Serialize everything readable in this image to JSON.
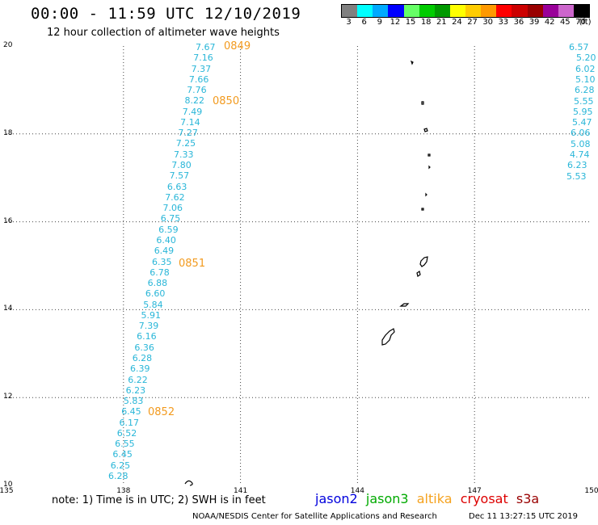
{
  "header": {
    "title": "00:00 - 11:59 UTC 12/10/2019",
    "subtitle": "12 hour collection of altimeter wave heights"
  },
  "legend": {
    "unit": "(ft)",
    "bins": [
      {
        "label": "3",
        "color": "#808080"
      },
      {
        "label": "6",
        "color": "#00ffff"
      },
      {
        "label": "9",
        "color": "#00aaff"
      },
      {
        "label": "12",
        "color": "#0000ff"
      },
      {
        "label": "15",
        "color": "#66ff66"
      },
      {
        "label": "18",
        "color": "#00cc00"
      },
      {
        "label": "21",
        "color": "#009900"
      },
      {
        "label": "24",
        "color": "#ffff00"
      },
      {
        "label": "27",
        "color": "#ffcc00"
      },
      {
        "label": "30",
        "color": "#ff9900"
      },
      {
        "label": "33",
        "color": "#ff0000"
      },
      {
        "label": "36",
        "color": "#cc0000"
      },
      {
        "label": "39",
        "color": "#990000"
      },
      {
        "label": "42",
        "color": "#990099"
      },
      {
        "label": "45",
        "color": "#cc66cc"
      },
      {
        "label": "70",
        "color": "#000000"
      }
    ]
  },
  "axes": {
    "lat_labels": [
      "20",
      "18",
      "16",
      "14",
      "12",
      "10"
    ],
    "lon_labels": [
      "135",
      "138",
      "141",
      "144",
      "147",
      "150"
    ]
  },
  "tracks": {
    "main_values": [
      "7.67",
      "7.16",
      "7.37",
      "7.66",
      "7.76",
      "8.22",
      "7.49",
      "7.14",
      "7.27",
      "7.25",
      "7.33",
      "7.80",
      "7.57",
      "6.63",
      "7.62",
      "7.06",
      "6.75",
      "6.59",
      "6.40",
      "6.49",
      "6.35",
      "6.78",
      "6.88",
      "6.60",
      "5.84",
      "5.91",
      "7.39",
      "6.16",
      "6.36",
      "6.28",
      "6.39",
      "6.22",
      "6.23",
      "5.83",
      "6.45",
      "6.17",
      "6.52",
      "6.55",
      "6.45",
      "6.25",
      "6.28"
    ],
    "east_values": [
      "6.57",
      "5.20",
      "6.02",
      "5.10",
      "6.28",
      "5.55",
      "5.95",
      "5.47",
      "6.06",
      "5.08",
      "4.74",
      "6.23",
      "5.53"
    ],
    "times": [
      "0849",
      "0850",
      "0851",
      "0852"
    ]
  },
  "footer": {
    "note": "note: 1) Time is in UTC; 2) SWH is in feet",
    "satellites": [
      {
        "name": "jason2",
        "color": "#0000dd"
      },
      {
        "name": "jason3",
        "color": "#00aa00"
      },
      {
        "name": "altika",
        "color": "#f5a21e"
      },
      {
        "name": "cryosat",
        "color": "#dd0000"
      },
      {
        "name": "s3a",
        "color": "#990000"
      }
    ],
    "org": "NOAA/NESDIS Center for Satellite Applications and Research",
    "timestamp": "Dec 11 13:27:15 UTC 2019"
  }
}
